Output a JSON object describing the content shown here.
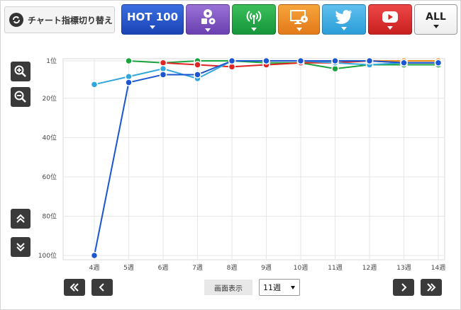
{
  "switcher": {
    "label": "チャート指標切り替え"
  },
  "categories": {
    "hot100": "HOT 100",
    "all": "ALL"
  },
  "display": {
    "label": "画面表示",
    "selected": "11週"
  },
  "colors": {
    "sales": "#ee8a1c",
    "radio": "#1aa33c",
    "youtube": "#e02424",
    "twitter": "#33a7dd",
    "hot100": "#1c55d0"
  },
  "chart_data": {
    "type": "line",
    "x": [
      "4週",
      "5週",
      "6週",
      "7週",
      "8週",
      "9週",
      "10週",
      "11週",
      "12週",
      "13週",
      "14週"
    ],
    "yticks": [
      "1位",
      "20位",
      "40位",
      "60位",
      "80位",
      "100位"
    ],
    "ytick_values": [
      1,
      20,
      40,
      60,
      80,
      100
    ],
    "ylim": [
      1,
      100
    ],
    "y_inverted": true,
    "grid": true,
    "series": [
      {
        "key": "sales",
        "values": [
          null,
          null,
          null,
          null,
          null,
          3,
          2,
          1,
          1,
          1,
          1
        ]
      },
      {
        "key": "radio",
        "values": [
          null,
          1,
          2,
          1,
          1,
          2,
          2,
          5,
          3,
          3,
          3
        ]
      },
      {
        "key": "youtube",
        "values": [
          null,
          null,
          2,
          3,
          4,
          3,
          2,
          2,
          1,
          2,
          2
        ]
      },
      {
        "key": "twitter",
        "values": [
          13,
          9,
          5,
          10,
          1,
          1,
          1,
          2,
          3,
          2,
          2
        ]
      },
      {
        "key": "hot100",
        "values": [
          100,
          12,
          8,
          8,
          1,
          1,
          1,
          1,
          1,
          2,
          2
        ]
      }
    ]
  }
}
